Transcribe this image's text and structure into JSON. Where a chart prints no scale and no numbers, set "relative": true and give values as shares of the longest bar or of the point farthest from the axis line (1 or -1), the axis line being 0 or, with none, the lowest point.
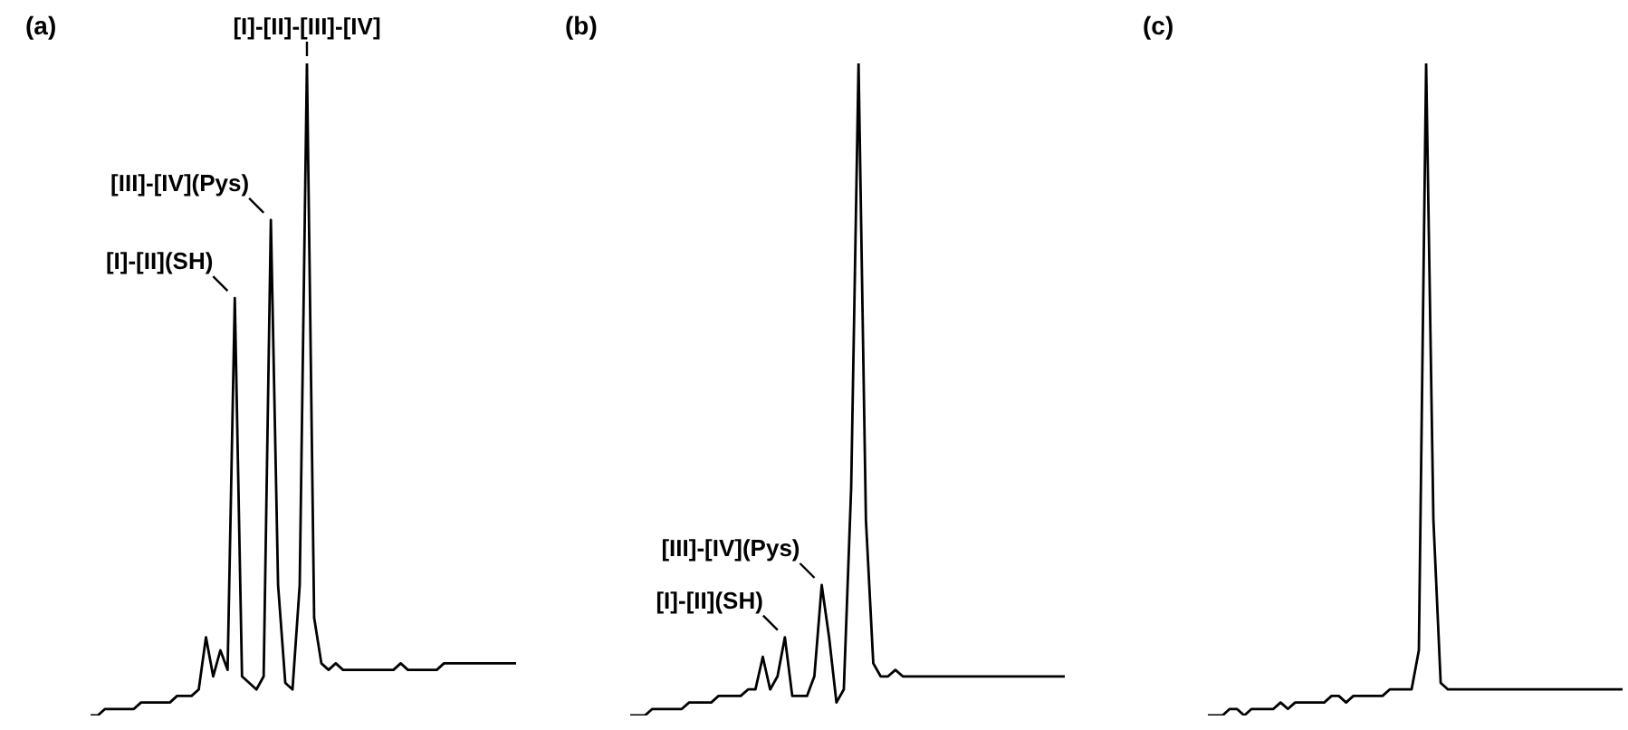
{
  "chart_data": [
    {
      "type": "line",
      "title": "(a)",
      "relative": true,
      "marker": "none",
      "categories": [
        null,
        null,
        null,
        null,
        null,
        null,
        null,
        null,
        null,
        null,
        null,
        null,
        null,
        null,
        null,
        null,
        null,
        null,
        null,
        null,
        null,
        null,
        null,
        null,
        null,
        null,
        null,
        null,
        null,
        null,
        null,
        null,
        null,
        null,
        null,
        null,
        null,
        null,
        null,
        null,
        null,
        null,
        null,
        null,
        null,
        null,
        null,
        null,
        null,
        null,
        null,
        null,
        null,
        null,
        null,
        null,
        null,
        null,
        null,
        null
      ],
      "series": [
        {
          "color": "#000000",
          "values": [
            0,
            0,
            0.01,
            0.01,
            0.01,
            0.01,
            0.01,
            0.02,
            0.02,
            0.02,
            0.02,
            0.02,
            0.03,
            0.03,
            0.03,
            0.04,
            0.12,
            0.06,
            0.1,
            0.07,
            0.64,
            0.06,
            0.05,
            0.04,
            0.06,
            0.76,
            0.2,
            0.05,
            0.04,
            0.2,
            1,
            0.15,
            0.08,
            0.07,
            0.08,
            0.07,
            0.07,
            0.07,
            0.07,
            0.07,
            0.07,
            0.07,
            0.07,
            0.08,
            0.07,
            0.07,
            0.07,
            0.07,
            0.07,
            0.08,
            0.08,
            0.08,
            0.08,
            0.08,
            0.08,
            0.08,
            0.08,
            0.08,
            0.08,
            0.08
          ]
        }
      ],
      "annotations": [
        "[I]-[II]-[III]-[IV]",
        "[III]-[IV](Pys)",
        "[I]-[II](SH)"
      ]
    },
    {
      "type": "line",
      "title": "(b)",
      "relative": true,
      "marker": "none",
      "categories": [
        null,
        null,
        null,
        null,
        null,
        null,
        null,
        null,
        null,
        null,
        null,
        null,
        null,
        null,
        null,
        null,
        null,
        null,
        null,
        null,
        null,
        null,
        null,
        null,
        null,
        null,
        null,
        null,
        null,
        null,
        null,
        null,
        null,
        null,
        null,
        null,
        null,
        null,
        null,
        null,
        null,
        null,
        null,
        null,
        null,
        null,
        null,
        null,
        null,
        null,
        null,
        null,
        null,
        null,
        null,
        null,
        null,
        null,
        null,
        null
      ],
      "series": [
        {
          "color": "#000000",
          "values": [
            0,
            0,
            0,
            0.01,
            0.01,
            0.01,
            0.01,
            0.01,
            0.02,
            0.02,
            0.02,
            0.02,
            0.03,
            0.03,
            0.03,
            0.03,
            0.04,
            0.04,
            0.09,
            0.04,
            0.06,
            0.12,
            0.03,
            0.03,
            0.03,
            0.06,
            0.2,
            0.12,
            0.02,
            0.04,
            0.35,
            1,
            0.3,
            0.08,
            0.06,
            0.06,
            0.07,
            0.06,
            0.06,
            0.06,
            0.06,
            0.06,
            0.06,
            0.06,
            0.06,
            0.06,
            0.06,
            0.06,
            0.06,
            0.06,
            0.06,
            0.06,
            0.06,
            0.06,
            0.06,
            0.06,
            0.06,
            0.06,
            0.06,
            0.06
          ]
        }
      ],
      "annotations": [
        "[III]-[IV](Pys)",
        "[I]-[II](SH)"
      ]
    },
    {
      "type": "line",
      "title": "(c)",
      "relative": true,
      "marker": "none",
      "categories": [
        null,
        null,
        null,
        null,
        null,
        null,
        null,
        null,
        null,
        null,
        null,
        null,
        null,
        null,
        null,
        null,
        null,
        null,
        null,
        null,
        null,
        null,
        null,
        null,
        null,
        null,
        null,
        null,
        null,
        null,
        null,
        null,
        null,
        null,
        null,
        null,
        null,
        null,
        null,
        null,
        null,
        null,
        null,
        null,
        null,
        null,
        null,
        null,
        null,
        null,
        null,
        null,
        null,
        null,
        null,
        null,
        null,
        null
      ],
      "series": [
        {
          "color": "#000000",
          "values": [
            0,
            0,
            0,
            0.01,
            0.01,
            0,
            0.01,
            0.01,
            0.01,
            0.01,
            0.02,
            0.01,
            0.02,
            0.02,
            0.02,
            0.02,
            0.02,
            0.03,
            0.03,
            0.02,
            0.03,
            0.03,
            0.03,
            0.03,
            0.03,
            0.04,
            0.04,
            0.04,
            0.04,
            0.1,
            1,
            0.3,
            0.05,
            0.04,
            0.04,
            0.04,
            0.04,
            0.04,
            0.04,
            0.04,
            0.04,
            0.04,
            0.04,
            0.04,
            0.04,
            0.04,
            0.04,
            0.04,
            0.04,
            0.04,
            0.04,
            0.04,
            0.04,
            0.04,
            0.04,
            0.04,
            0.04,
            0.04
          ]
        }
      ]
    }
  ]
}
